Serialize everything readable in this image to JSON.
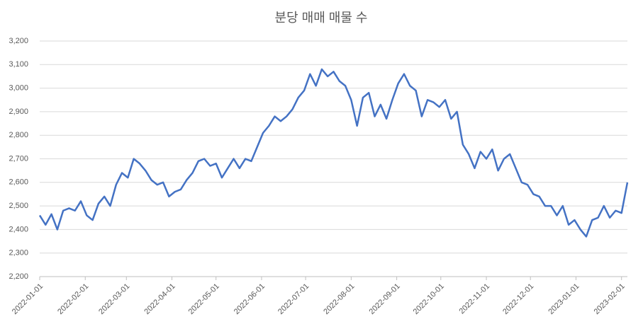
{
  "chart_data": {
    "type": "line",
    "title": "분당 매매 매물 수",
    "x": [
      "2022-01-01",
      "2022-01-05",
      "2022-01-09",
      "2022-01-13",
      "2022-01-17",
      "2022-01-21",
      "2022-01-25",
      "2022-01-29",
      "2022-02-02",
      "2022-02-06",
      "2022-02-10",
      "2022-02-14",
      "2022-02-18",
      "2022-02-22",
      "2022-02-26",
      "2022-03-02",
      "2022-03-06",
      "2022-03-10",
      "2022-03-14",
      "2022-03-18",
      "2022-03-22",
      "2022-03-26",
      "2022-03-30",
      "2022-04-03",
      "2022-04-07",
      "2022-04-11",
      "2022-04-15",
      "2022-04-19",
      "2022-04-23",
      "2022-04-27",
      "2022-05-01",
      "2022-05-05",
      "2022-05-09",
      "2022-05-13",
      "2022-05-17",
      "2022-05-21",
      "2022-05-25",
      "2022-05-29",
      "2022-06-02",
      "2022-06-06",
      "2022-06-10",
      "2022-06-14",
      "2022-06-18",
      "2022-06-22",
      "2022-06-26",
      "2022-06-30",
      "2022-07-04",
      "2022-07-08",
      "2022-07-12",
      "2022-07-16",
      "2022-07-20",
      "2022-07-24",
      "2022-07-28",
      "2022-08-01",
      "2022-08-05",
      "2022-08-09",
      "2022-08-13",
      "2022-08-17",
      "2022-08-21",
      "2022-08-25",
      "2022-08-29",
      "2022-09-02",
      "2022-09-06",
      "2022-09-10",
      "2022-09-14",
      "2022-09-18",
      "2022-09-22",
      "2022-09-26",
      "2022-09-30",
      "2022-10-04",
      "2022-10-08",
      "2022-10-12",
      "2022-10-16",
      "2022-10-20",
      "2022-10-24",
      "2022-10-28",
      "2022-11-01",
      "2022-11-05",
      "2022-11-09",
      "2022-11-13",
      "2022-11-17",
      "2022-11-21",
      "2022-11-25",
      "2022-11-29",
      "2022-12-03",
      "2022-12-07",
      "2022-12-11",
      "2022-12-15",
      "2022-12-19",
      "2022-12-23",
      "2022-12-27",
      "2022-12-31",
      "2023-01-04",
      "2023-01-08",
      "2023-01-12",
      "2023-01-16",
      "2023-01-20",
      "2023-01-24",
      "2023-01-28",
      "2023-02-01",
      "2023-02-05"
    ],
    "series": [
      {
        "name": "분당 매매 매물 수",
        "color": "#4472c4",
        "values": [
          2460,
          2420,
          2465,
          2400,
          2480,
          2490,
          2480,
          2520,
          2460,
          2440,
          2510,
          2540,
          2500,
          2590,
          2640,
          2620,
          2700,
          2680,
          2650,
          2610,
          2590,
          2600,
          2540,
          2560,
          2570,
          2610,
          2640,
          2690,
          2700,
          2670,
          2680,
          2620,
          2660,
          2700,
          2660,
          2700,
          2690,
          2750,
          2810,
          2840,
          2880,
          2860,
          2880,
          2910,
          2960,
          2990,
          3060,
          3010,
          3080,
          3050,
          3070,
          3030,
          3010,
          2950,
          2840,
          2960,
          2980,
          2880,
          2930,
          2870,
          2950,
          3020,
          3060,
          3010,
          2990,
          2880,
          2950,
          2940,
          2920,
          2950,
          2870,
          2900,
          2760,
          2720,
          2660,
          2730,
          2700,
          2740,
          2650,
          2700,
          2720,
          2660,
          2600,
          2590,
          2550,
          2540,
          2500,
          2500,
          2460,
          2500,
          2420,
          2440,
          2400,
          2370,
          2440,
          2450,
          2500,
          2450,
          2480,
          2470,
          2600
        ]
      }
    ],
    "xlim": [
      "2022-01-01",
      "2023-02-05"
    ],
    "xticks": [
      "2022-01-01",
      "2022-02-01",
      "2022-03-01",
      "2022-04-01",
      "2022-05-01",
      "2022-06-01",
      "2022-07-01",
      "2022-08-01",
      "2022-09-01",
      "2022-10-01",
      "2022-11-01",
      "2022-12-01",
      "2023-01-01",
      "2023-02-01"
    ],
    "ylim": [
      2200,
      3200
    ],
    "yticks": [
      {
        "value": 2200,
        "label": "2,200"
      },
      {
        "value": 2300,
        "label": "2,300"
      },
      {
        "value": 2400,
        "label": "2,400"
      },
      {
        "value": 2500,
        "label": "2,500"
      },
      {
        "value": 2600,
        "label": "2,600"
      },
      {
        "value": 2700,
        "label": "2,700"
      },
      {
        "value": 2800,
        "label": "2,800"
      },
      {
        "value": 2900,
        "label": "2,900"
      },
      {
        "value": 3000,
        "label": "3,000"
      },
      {
        "value": 3100,
        "label": "3,100"
      },
      {
        "value": 3200,
        "label": "3,200"
      }
    ],
    "grid": true
  }
}
